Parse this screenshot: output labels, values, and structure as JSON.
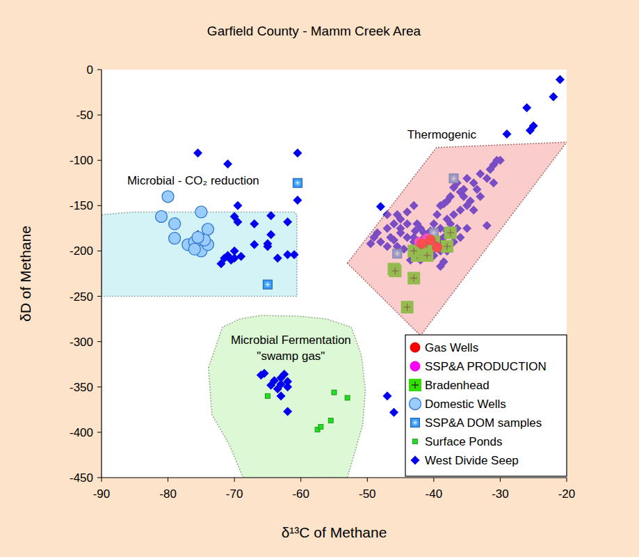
{
  "chart_data": {
    "type": "scatter",
    "title": "Garfield County - Mamm Creek Area",
    "x_label": "δ¹³C of Methane",
    "y_label": "δD of Methane",
    "xlim": [
      -90,
      -20
    ],
    "ylim": [
      -450,
      0
    ],
    "xticks": [
      -90,
      -80,
      -70,
      -60,
      -50,
      -40,
      -30,
      -20
    ],
    "yticks": [
      -450,
      -400,
      -350,
      -300,
      -250,
      -200,
      -150,
      -100,
      -50,
      0
    ],
    "grid": false,
    "legend": "lower right",
    "regions": [
      {
        "color": "#d4f3f7",
        "points": [
          [
            -90,
            -160
          ],
          [
            -85,
            -157
          ],
          [
            -70,
            -157
          ],
          [
            -61,
            -157
          ],
          [
            -60.6,
            -160
          ],
          [
            -60.6,
            -250
          ],
          [
            -90,
            -250
          ]
        ]
      },
      {
        "color": "#dcf8d4",
        "points": [
          [
            -73.9,
            -328.7
          ],
          [
            -71.8,
            -284.2
          ],
          [
            -69.2,
            -275
          ],
          [
            -66,
            -271.1
          ],
          [
            -60.3,
            -271.9
          ],
          [
            -56.1,
            -275
          ],
          [
            -52.4,
            -284.2
          ],
          [
            -50.9,
            -314.9
          ],
          [
            -50.3,
            -353.3
          ],
          [
            -50.7,
            -391.7
          ],
          [
            -51.9,
            -422.4
          ],
          [
            -53,
            -450
          ],
          [
            -68.7,
            -450
          ],
          [
            -70.7,
            -414.7
          ],
          [
            -73.4,
            -380.2
          ]
        ]
      },
      {
        "color": "#f59a9a",
        "points": [
          [
            -53,
            -213.5
          ],
          [
            -39.6,
            -86
          ],
          [
            -20,
            -80
          ],
          [
            -42,
            -293.4
          ]
        ]
      }
    ],
    "annotations": [
      {
        "text": [
          "Thermogenic"
        ],
        "x": -38.8,
        "y": -71.4
      },
      {
        "text": [
          "Microbial - CO₂ reduction"
        ],
        "x": -76.2,
        "y": -122
      },
      {
        "text": [
          "Microbial Fermentation",
          "\"swamp gas\""
        ],
        "x": -61.5,
        "y": -298
      }
    ],
    "series": [
      {
        "name": "Gas Wells",
        "color": "#ff0000",
        "marker": "circle",
        "x": [
          -41.8,
          -40.5,
          -39.5
        ],
        "values": [
          -192,
          -188,
          -196
        ]
      },
      {
        "name": "SSP&A PRODUCTION",
        "color": "#ff00ff",
        "marker": "circle",
        "x": [
          -42.2,
          -41
        ],
        "values": [
          -190,
          -186
        ]
      },
      {
        "name": "Bradenhead",
        "color": "#33dd00",
        "marker": "square-cross",
        "x": [
          -46,
          -45.8,
          -43,
          -44,
          -42.5,
          -41,
          -38,
          -37.5,
          -41,
          -40,
          -43
        ],
        "values": [
          -220,
          -222,
          -230,
          -262,
          -205,
          -205,
          -195,
          -180,
          -193,
          -190,
          -200
        ]
      },
      {
        "name": "Domestic Wells",
        "color": "#99ccff",
        "marker": "circle-large",
        "x": [
          -80,
          -81,
          -79,
          -79,
          -75,
          -74,
          -77,
          -76,
          -75,
          -75,
          -74,
          -74.5,
          -75.5,
          -76
        ],
        "values": [
          -140,
          -162,
          -170,
          -186,
          -157,
          -176,
          -193,
          -190,
          -195,
          -200,
          -193,
          -188,
          -185,
          -198
        ]
      },
      {
        "name": "SSP&A DOM samples",
        "color": "#3399ff",
        "marker": "square-star",
        "x": [
          -60.5,
          -65,
          -37,
          -45.5,
          -40
        ],
        "values": [
          -125,
          -237,
          -120,
          -203,
          -180
        ]
      },
      {
        "name": "Surface Ponds",
        "color": "#22dd22",
        "marker": "square-small",
        "x": [
          -65,
          -57.5,
          -57,
          -55.5,
          -55,
          -53
        ],
        "values": [
          -360,
          -397,
          -394,
          -387,
          -356,
          -362
        ]
      },
      {
        "name": "West Divide Seep",
        "color": "#0000ee",
        "marker": "diamond",
        "x": [
          -75.5,
          -71,
          -60.5,
          -69.5,
          -70,
          -69.5,
          -60.5,
          -64.5,
          -62,
          -67,
          -65,
          -65,
          -64.5,
          -67,
          -63.5,
          -62,
          -61,
          -70,
          -70,
          -71,
          -72,
          -71.5,
          -69,
          -70.5,
          -75.5,
          -66,
          -65.5,
          -64,
          -63,
          -62.5,
          -63,
          -62,
          -62,
          -63.5,
          -64.5,
          -63,
          -62,
          -47,
          -46,
          -21,
          -22,
          -26,
          -25,
          -25.5,
          -29,
          -48,
          -47,
          -48.5,
          -49,
          -49.5,
          -48,
          -47,
          -46,
          -45.5,
          -45,
          -44,
          -43,
          -42.5,
          -42,
          -41.5,
          -41,
          -40.5,
          -40,
          -39.5,
          -39,
          -38.5,
          -38,
          -37.5,
          -37,
          -36.5,
          -36,
          -35.5,
          -35,
          -34.5,
          -34,
          -33.5,
          -33,
          -32,
          -31.5,
          -31,
          -30.5,
          -30,
          -31,
          -32,
          -35,
          -34,
          -36,
          -37,
          -38,
          -39,
          -40,
          -41,
          -42,
          -43,
          -44,
          -45,
          -46,
          -47,
          -44.5,
          -43.5,
          -42,
          -40,
          -39,
          -38,
          -37,
          -36,
          -35,
          -39,
          -38.5,
          -40,
          -41,
          -40.5,
          -39.5,
          -39,
          -38.5,
          -41.5,
          -42.5,
          -43,
          -44,
          -45,
          -46.5,
          -45.5,
          -37.5,
          -36.5,
          -38,
          -40.2,
          -41.8,
          -42.8,
          -35.5,
          -33
        ],
        "values": [
          -92,
          -104,
          -92,
          -150,
          -162,
          -168,
          -144,
          -161,
          -168,
          -170,
          -192,
          -195,
          -182,
          -193,
          -208,
          -204,
          -204,
          -200,
          -208,
          -205,
          -214,
          -208,
          -206,
          -210,
          -182,
          -337,
          -335,
          -343,
          -340,
          -336,
          -347,
          -344,
          -350,
          -352,
          -348,
          -360,
          -377,
          -360,
          -378,
          -11,
          -30,
          -42,
          -62,
          -67,
          -71,
          -151,
          -160,
          -180,
          -185,
          -192,
          -190,
          -175,
          -170,
          -160,
          -165,
          -157,
          -150,
          -170,
          -175,
          -180,
          -185,
          -178,
          -170,
          -160,
          -150,
          -148,
          -145,
          -140,
          -130,
          -125,
          -135,
          -140,
          -150,
          -145,
          -125,
          -132,
          -115,
          -120,
          -110,
          -105,
          -100,
          -100,
          -125,
          -172,
          -120,
          -155,
          -155,
          -160,
          -165,
          -175,
          -190,
          -195,
          -200,
          -190,
          -185,
          -180,
          -188,
          -195,
          -198,
          -210,
          -210,
          -205,
          -200,
          -200,
          -190,
          -185,
          -175,
          -217,
          -212,
          -185,
          -190,
          -195,
          -195,
          -188,
          -185,
          -200,
          -195,
          -185,
          -170,
          -175,
          -185,
          -195,
          -170,
          -175,
          -178,
          -181,
          -188,
          -178,
          -132,
          -140
        ]
      }
    ]
  }
}
